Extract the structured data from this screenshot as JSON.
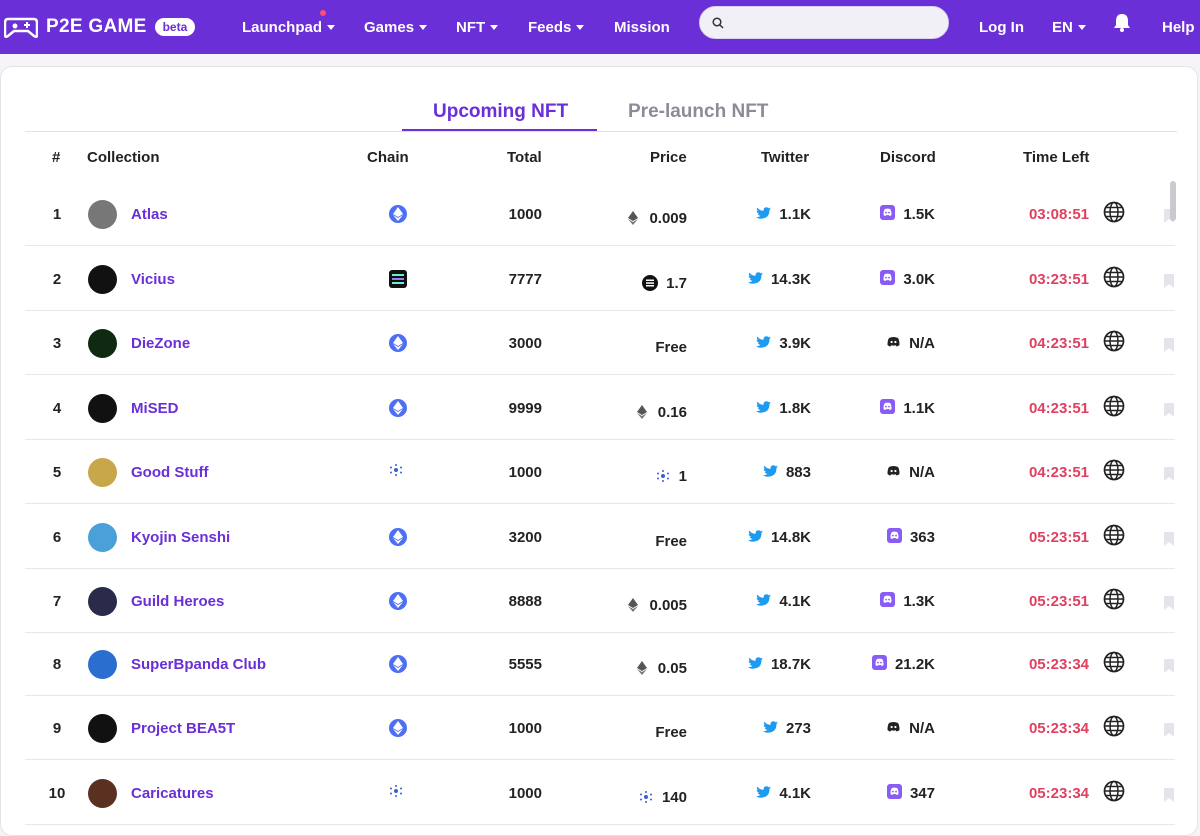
{
  "nav": {
    "brand_name": "P2E GAME",
    "beta_label": "beta",
    "items": [
      {
        "label": "Launchpad",
        "has_dot": true
      },
      {
        "label": "Games"
      },
      {
        "label": "NFT"
      },
      {
        "label": "Feeds"
      },
      {
        "label": "Mission"
      }
    ],
    "search_placeholder": "",
    "login_label": "Log In",
    "lang_label": "EN",
    "help_label": "Help"
  },
  "tabs": [
    {
      "label": "Upcoming NFT",
      "active": true
    },
    {
      "label": "Pre-launch NFT",
      "active": false
    }
  ],
  "table": {
    "headers": {
      "num": "#",
      "collection": "Collection",
      "chain": "Chain",
      "total": "Total",
      "price": "Price",
      "twitter": "Twitter",
      "discord": "Discord",
      "time_left": "Time Left"
    },
    "rows": [
      {
        "num": "1",
        "name": "Atlas",
        "chain": "eth",
        "total": "1000",
        "price": "0.009",
        "price_icon": "eth",
        "twitter": "1.1K",
        "discord": "1.5K",
        "discord_style": "purple",
        "time": "03:08:51"
      },
      {
        "num": "2",
        "name": "Vicius",
        "chain": "sol",
        "total": "7777",
        "price": "1.7",
        "price_icon": "sol",
        "twitter": "14.3K",
        "discord": "3.0K",
        "discord_style": "purple",
        "time": "03:23:51"
      },
      {
        "num": "3",
        "name": "DieZone",
        "chain": "eth",
        "total": "3000",
        "price": "Free",
        "price_icon": "",
        "twitter": "3.9K",
        "discord": "N/A",
        "discord_style": "dark",
        "time": "04:23:51"
      },
      {
        "num": "4",
        "name": "MiSED",
        "chain": "eth",
        "total": "9999",
        "price": "0.16",
        "price_icon": "eth",
        "twitter": "1.8K",
        "discord": "1.1K",
        "discord_style": "purple",
        "time": "04:23:51"
      },
      {
        "num": "5",
        "name": "Good Stuff",
        "chain": "ada",
        "total": "1000",
        "price": "1",
        "price_icon": "ada",
        "twitter": "883",
        "discord": "N/A",
        "discord_style": "dark",
        "time": "04:23:51"
      },
      {
        "num": "6",
        "name": "Kyojin Senshi",
        "chain": "eth",
        "total": "3200",
        "price": "Free",
        "price_icon": "",
        "twitter": "14.8K",
        "discord": "363",
        "discord_style": "purple",
        "time": "05:23:51"
      },
      {
        "num": "7",
        "name": "Guild Heroes",
        "chain": "eth",
        "total": "8888",
        "price": "0.005",
        "price_icon": "eth",
        "twitter": "4.1K",
        "discord": "1.3K",
        "discord_style": "purple",
        "time": "05:23:51"
      },
      {
        "num": "8",
        "name": "SuperBpanda Club",
        "chain": "eth",
        "total": "5555",
        "price": "0.05",
        "price_icon": "eth",
        "twitter": "18.7K",
        "discord": "21.2K",
        "discord_style": "purple",
        "time": "05:23:34"
      },
      {
        "num": "9",
        "name": "Project BEA5T",
        "chain": "eth",
        "total": "1000",
        "price": "Free",
        "price_icon": "",
        "twitter": "273",
        "discord": "N/A",
        "discord_style": "dark",
        "time": "05:23:34"
      },
      {
        "num": "10",
        "name": "Caricatures",
        "chain": "ada",
        "total": "1000",
        "price": "140",
        "price_icon": "ada",
        "twitter": "4.1K",
        "discord": "347",
        "discord_style": "purple",
        "time": "05:23:34"
      }
    ]
  },
  "colors": {
    "brand": "#6a2fd6",
    "time": "#e0405f",
    "twitter": "#1d9bf0",
    "discord": "#8a5cf6",
    "eth_chain": "#4d6ff5"
  }
}
